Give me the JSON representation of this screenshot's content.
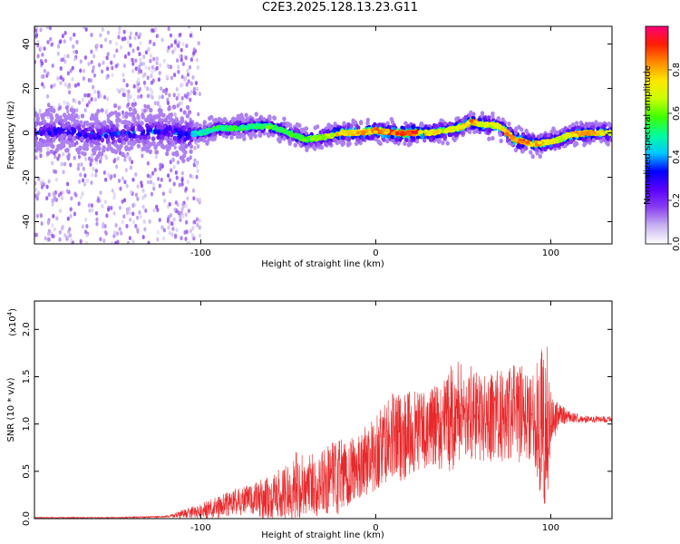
{
  "title": "C2E3.2025.128.13.23.G11",
  "chart_data": [
    {
      "type": "heatmap",
      "xlabel": "Height of straight line (km)",
      "ylabel": "Frequency (Hz)",
      "xlim": [
        -195,
        135
      ],
      "ylim": [
        -50,
        48
      ],
      "xticks": [
        -100,
        0,
        100
      ],
      "yticks": [
        -40,
        -20,
        0,
        20,
        40
      ],
      "xtick_labels": [
        "-100",
        "0",
        "100"
      ],
      "ytick_labels": [
        "-40",
        "-20",
        "0",
        "20",
        "40"
      ],
      "colorbar": {
        "label": "Normalized spectral amplitude",
        "range": [
          0,
          1
        ],
        "ticks": [
          0.0,
          0.2,
          0.4,
          0.6,
          0.8
        ],
        "tick_labels": [
          "0.0",
          "0.2",
          "0.4",
          "0.6",
          "0.8"
        ],
        "colormap": [
          "#ffffff",
          "#c8b4f0",
          "#8a3ff0",
          "#5a00ff",
          "#0000ff",
          "#00c8ff",
          "#00ff9a",
          "#40ff00",
          "#c8ff00",
          "#ffe600",
          "#ff8c00",
          "#ff1e00",
          "#ff0078"
        ]
      },
      "ridge": {
        "x": [
          -195,
          -180,
          -160,
          -140,
          -120,
          -110,
          -100,
          -90,
          -80,
          -70,
          -60,
          -50,
          -40,
          -30,
          -20,
          -10,
          0,
          10,
          20,
          30,
          40,
          50,
          55,
          60,
          70,
          75,
          80,
          90,
          100,
          105,
          110,
          120,
          130,
          135
        ],
        "y": [
          0,
          1,
          -1,
          0,
          1,
          -1,
          0,
          2,
          2,
          3,
          3,
          0,
          -3,
          -2,
          0,
          0,
          1,
          0,
          0,
          0,
          1,
          3,
          5,
          4,
          3,
          0,
          -3,
          -5,
          -4,
          -3,
          -1,
          0,
          0,
          0
        ],
        "amplitude": [
          0.35,
          0.35,
          0.38,
          0.38,
          0.4,
          0.42,
          0.5,
          0.55,
          0.55,
          0.55,
          0.6,
          0.58,
          0.6,
          0.65,
          0.8,
          0.82,
          0.85,
          0.9,
          0.95,
          0.8,
          0.7,
          0.8,
          0.9,
          0.75,
          0.7,
          0.85,
          0.9,
          0.85,
          0.75,
          0.7,
          0.8,
          0.9,
          0.75,
          0.7
        ]
      }
    },
    {
      "type": "line",
      "xlabel": "Height of straight line (km)",
      "ylabel": "SNR (10 * v/v)",
      "scale_label": "(x10",
      "scale_exponent": "4",
      "xlim": [
        -195,
        135
      ],
      "ylim": [
        0,
        2.3
      ],
      "xticks": [
        -100,
        0,
        100
      ],
      "yticks": [
        0.0,
        0.5,
        1.0,
        1.5,
        2.0
      ],
      "xtick_labels": [
        "-100",
        "0",
        "100"
      ],
      "ytick_labels": [
        "0.0",
        "0.5",
        "1.0",
        "1.5",
        "2.0"
      ],
      "color": "#e8282a",
      "series": [
        {
          "x": [
            -195,
            -150,
            -120,
            -100,
            -90,
            -80,
            -70,
            -60,
            -50,
            -45,
            -40,
            -30,
            -20,
            -10,
            0,
            10,
            20,
            30,
            40,
            45,
            50,
            60,
            70,
            80,
            90,
            95,
            97,
            100,
            105,
            110,
            120,
            135
          ],
          "mean": [
            0.01,
            0.01,
            0.02,
            0.08,
            0.12,
            0.18,
            0.2,
            0.22,
            0.28,
            0.33,
            0.35,
            0.38,
            0.42,
            0.55,
            0.7,
            0.85,
            0.9,
            0.95,
            1.0,
            1.1,
            1.15,
            1.05,
            1.1,
            1.1,
            1.1,
            1.0,
            0.95,
            1.05,
            1.1,
            1.08,
            1.05,
            1.05
          ],
          "spread": [
            0.005,
            0.005,
            0.01,
            0.08,
            0.12,
            0.15,
            0.18,
            0.25,
            0.3,
            0.4,
            0.35,
            0.35,
            0.45,
            0.35,
            0.4,
            0.5,
            0.45,
            0.4,
            0.5,
            0.6,
            0.55,
            0.45,
            0.5,
            0.55,
            0.45,
            0.9,
            1.3,
            0.3,
            0.12,
            0.06,
            0.04,
            0.03
          ]
        }
      ]
    }
  ]
}
